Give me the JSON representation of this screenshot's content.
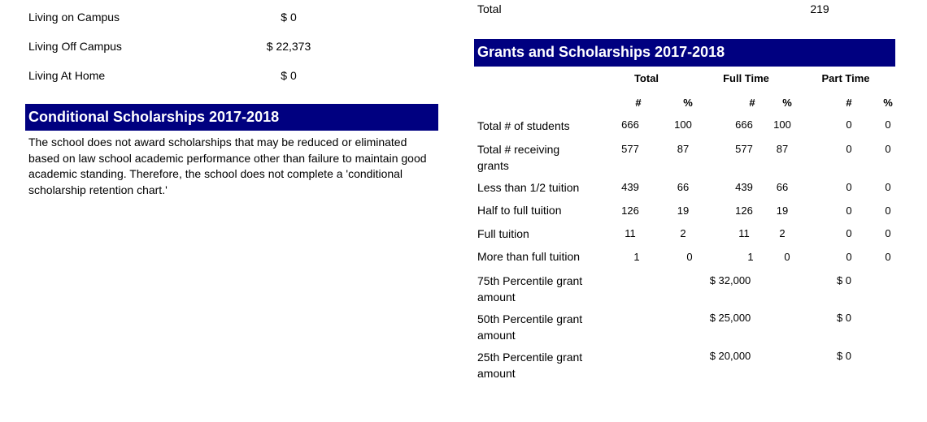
{
  "living": [
    {
      "label": "Living on Campus",
      "value": "$ 0"
    },
    {
      "label": "Living Off Campus",
      "value": "$ 22,373"
    },
    {
      "label": "Living At Home",
      "value": "$ 0"
    }
  ],
  "conditional": {
    "title": "Conditional Scholarships 2017-2018",
    "text": "The school does not award scholarships that may be reduced or eliminated based on law school academic performance other than failure to maintain good academic standing. Therefore, the school does not complete a 'conditional scholarship retention chart.'"
  },
  "total_row": {
    "label": "Total",
    "value": "219"
  },
  "grants": {
    "title": "Grants and Scholarships 2017-2018",
    "group_headers": [
      "Total",
      "Full Time",
      "Part Time"
    ],
    "sub_headers": [
      "#",
      "%",
      "#",
      "%",
      "#",
      "%"
    ],
    "rows": [
      {
        "label": "Total # of students",
        "values": [
          "666",
          "100",
          "666",
          "100",
          "0",
          "0"
        ]
      },
      {
        "label": "Total # receiving grants",
        "values": [
          "577",
          "87",
          "577",
          "87",
          "0",
          "0"
        ]
      },
      {
        "label": "Less than 1/2 tuition",
        "values": [
          "439",
          "66",
          "439",
          "66",
          "0",
          "0"
        ]
      },
      {
        "label": "Half to full tuition",
        "values": [
          "126",
          "19",
          "126",
          "19",
          "0",
          "0"
        ]
      },
      {
        "label": "Full tuition",
        "values": [
          "11",
          "2",
          "11",
          "2",
          "0",
          "0"
        ]
      },
      {
        "label": "More than full tuition",
        "values": [
          "1",
          "0",
          "1",
          "0",
          "0",
          "0"
        ]
      }
    ],
    "percentiles": [
      {
        "label": "75th Percentile grant amount",
        "full_time": "$ 32,000",
        "part_time": "$ 0"
      },
      {
        "label": "50th Percentile grant amount",
        "full_time": "$ 25,000",
        "part_time": "$ 0"
      },
      {
        "label": "25th Percentile grant amount",
        "full_time": "$ 20,000",
        "part_time": "$ 0"
      }
    ]
  }
}
